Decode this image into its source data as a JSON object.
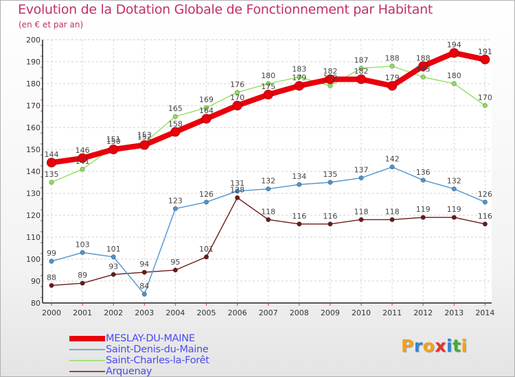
{
  "chart_data": {
    "type": "line",
    "title": "Evolution de la Dotation Globale de Fonctionnement par Habitant",
    "subtitle": "(en € et par an)",
    "xlabel": "",
    "ylabel": "",
    "categories": [
      "2000",
      "2001",
      "2002",
      "2003",
      "2004",
      "2005",
      "2006",
      "2007",
      "2008",
      "2009",
      "2010",
      "2011",
      "2012",
      "2013",
      "2014"
    ],
    "ylim": [
      80,
      200
    ],
    "yticks": [
      80,
      90,
      100,
      110,
      120,
      130,
      140,
      150,
      160,
      170,
      180,
      190,
      200
    ],
    "grid": true,
    "series": [
      {
        "name": "MESLAY-DU-MAINE",
        "color": "#e8000b",
        "values": [
          144,
          146,
          150,
          152,
          158,
          164,
          170,
          175,
          179,
          182,
          182,
          179,
          188,
          194,
          191
        ]
      },
      {
        "name": "Saint-Denis-du-Maine",
        "color": "#4f94cd",
        "values": [
          99,
          103,
          101,
          84,
          123,
          126,
          131,
          132,
          134,
          135,
          137,
          142,
          136,
          132,
          126
        ]
      },
      {
        "name": "Saint-Charles-la-Forêt",
        "color": "#8fe05a",
        "values": [
          135,
          141,
          151,
          153,
          165,
          169,
          176,
          180,
          183,
          179,
          187,
          188,
          183,
          180,
          170
        ]
      },
      {
        "name": "Arquenay",
        "color": "#6b1a1a",
        "values": [
          88,
          89,
          93,
          94,
          95,
          101,
          128,
          118,
          116,
          116,
          118,
          118,
          119,
          119,
          116
        ]
      }
    ]
  },
  "brand": {
    "letters": [
      "P",
      "r",
      "o",
      "x",
      "i",
      "t",
      "i"
    ],
    "colors": [
      "#f2a21b",
      "#2f86d6",
      "#f2a21b",
      "#e5322d",
      "#2f86d6",
      "#4aa83a",
      "#f2a21b"
    ]
  }
}
